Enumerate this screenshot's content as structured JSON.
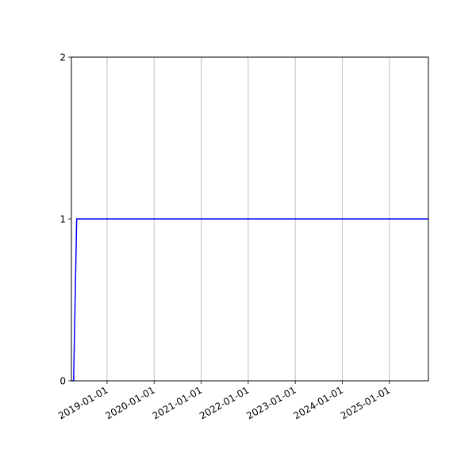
{
  "chart_data": {
    "type": "line",
    "title": "",
    "xlabel": "",
    "ylabel": "",
    "x_scale": "date",
    "xlim": [
      "2018-03-30",
      "2025-10-31"
    ],
    "ylim": [
      0,
      2
    ],
    "grid": {
      "x": true,
      "y": false
    },
    "x_ticks": [
      "2019-01-01",
      "2020-01-01",
      "2021-01-01",
      "2022-01-01",
      "2023-01-01",
      "2024-01-01",
      "2025-01-01"
    ],
    "y_ticks": [
      "0",
      "1",
      "2"
    ],
    "series": [
      {
        "color": "#0000ff",
        "points": [
          [
            "2018-03-30",
            0
          ],
          [
            "2018-04-16",
            0
          ],
          [
            "2018-05-10",
            1
          ],
          [
            "2025-10-31",
            1
          ]
        ]
      }
    ]
  }
}
